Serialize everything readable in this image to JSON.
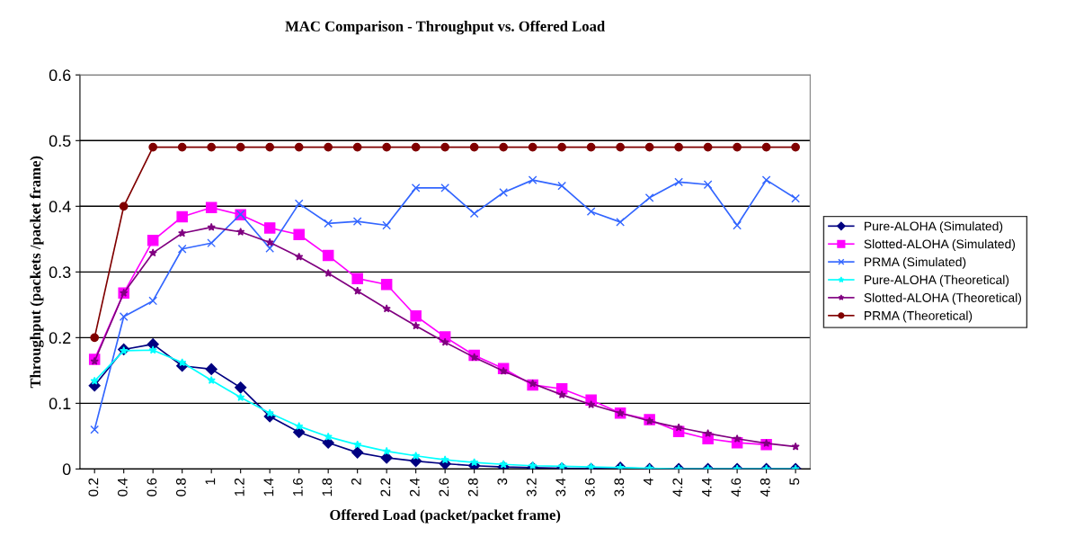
{
  "chart_data": {
    "type": "line",
    "title": "MAC Comparison - Throughput vs. Offered Load",
    "xlabel": "Offered Load (packet/packet frame)",
    "ylabel": "Throughput (packets /packet frame)",
    "categories": [
      "0.2",
      "0.4",
      "0.6",
      "0.8",
      "1",
      "1.2",
      "1.4",
      "1.6",
      "1.8",
      "2",
      "2.2",
      "2.4",
      "2.6",
      "2.8",
      "3",
      "3.2",
      "3.4",
      "3.6",
      "3.8",
      "4",
      "4.2",
      "4.4",
      "4.6",
      "4.8",
      "5"
    ],
    "series": [
      {
        "name": "Pure-ALOHA (Simulated)",
        "color": "#000080",
        "marker": "diamond",
        "values": [
          0.127,
          0.182,
          0.19,
          0.157,
          0.152,
          0.124,
          0.08,
          0.056,
          0.04,
          0.025,
          0.017,
          0.012,
          0.008,
          0.005,
          0.003,
          0.002,
          0.001,
          0,
          0.002,
          0,
          0,
          0,
          0,
          0,
          0
        ]
      },
      {
        "name": "Slotted-ALOHA (Simulated)",
        "color": "#ff00ff",
        "marker": "square",
        "values": [
          0.167,
          0.268,
          0.348,
          0.384,
          0.398,
          0.387,
          0.367,
          0.357,
          0.325,
          0.29,
          0.281,
          0.233,
          0.201,
          0.173,
          0.153,
          0.128,
          0.122,
          0.105,
          0.085,
          0.075,
          0.057,
          0.046,
          0.04,
          0.037,
          null
        ]
      },
      {
        "name": "PRMA (Simulated)",
        "color": "#3366ff",
        "marker": "cross",
        "values": [
          0.06,
          0.232,
          0.256,
          0.335,
          0.344,
          0.388,
          0.336,
          0.404,
          0.374,
          0.377,
          0.371,
          0.428,
          0.428,
          0.389,
          0.421,
          0.44,
          0.431,
          0.392,
          0.376,
          0.413,
          0.437,
          0.433,
          0.371,
          0.44,
          0.412
        ]
      },
      {
        "name": "Pure-ALOHA (Theoretical)",
        "color": "#00ffff",
        "marker": "star",
        "values": [
          0.134,
          0.18,
          0.181,
          0.162,
          0.135,
          0.109,
          0.085,
          0.065,
          0.049,
          0.037,
          0.027,
          0.02,
          0.014,
          0.01,
          0.007,
          0.005,
          0.004,
          0.003,
          0.002,
          0.001,
          0,
          0,
          0,
          0,
          0
        ]
      },
      {
        "name": "Slotted-ALOHA (Theoretical)",
        "color": "#800080",
        "marker": "star",
        "values": [
          0.164,
          0.268,
          0.329,
          0.359,
          0.368,
          0.361,
          0.345,
          0.323,
          0.298,
          0.271,
          0.244,
          0.218,
          0.193,
          0.17,
          0.149,
          0.13,
          0.113,
          0.098,
          0.085,
          0.073,
          0.063,
          0.054,
          0.046,
          0.039,
          0.034
        ]
      },
      {
        "name": "PRMA (Theoretical)",
        "color": "#800000",
        "marker": "circle",
        "values": [
          0.2,
          0.4,
          0.49,
          0.49,
          0.49,
          0.49,
          0.49,
          0.49,
          0.49,
          0.49,
          0.49,
          0.49,
          0.49,
          0.49,
          0.49,
          0.49,
          0.49,
          0.49,
          0.49,
          0.49,
          0.49,
          0.49,
          0.49,
          0.49,
          0.49
        ]
      }
    ],
    "ylim": [
      0,
      0.6
    ],
    "yticks": [
      0,
      0.1,
      0.2,
      0.3,
      0.4,
      0.5,
      0.6
    ],
    "grid": "y",
    "legend": "right",
    "line_style": "solid"
  }
}
